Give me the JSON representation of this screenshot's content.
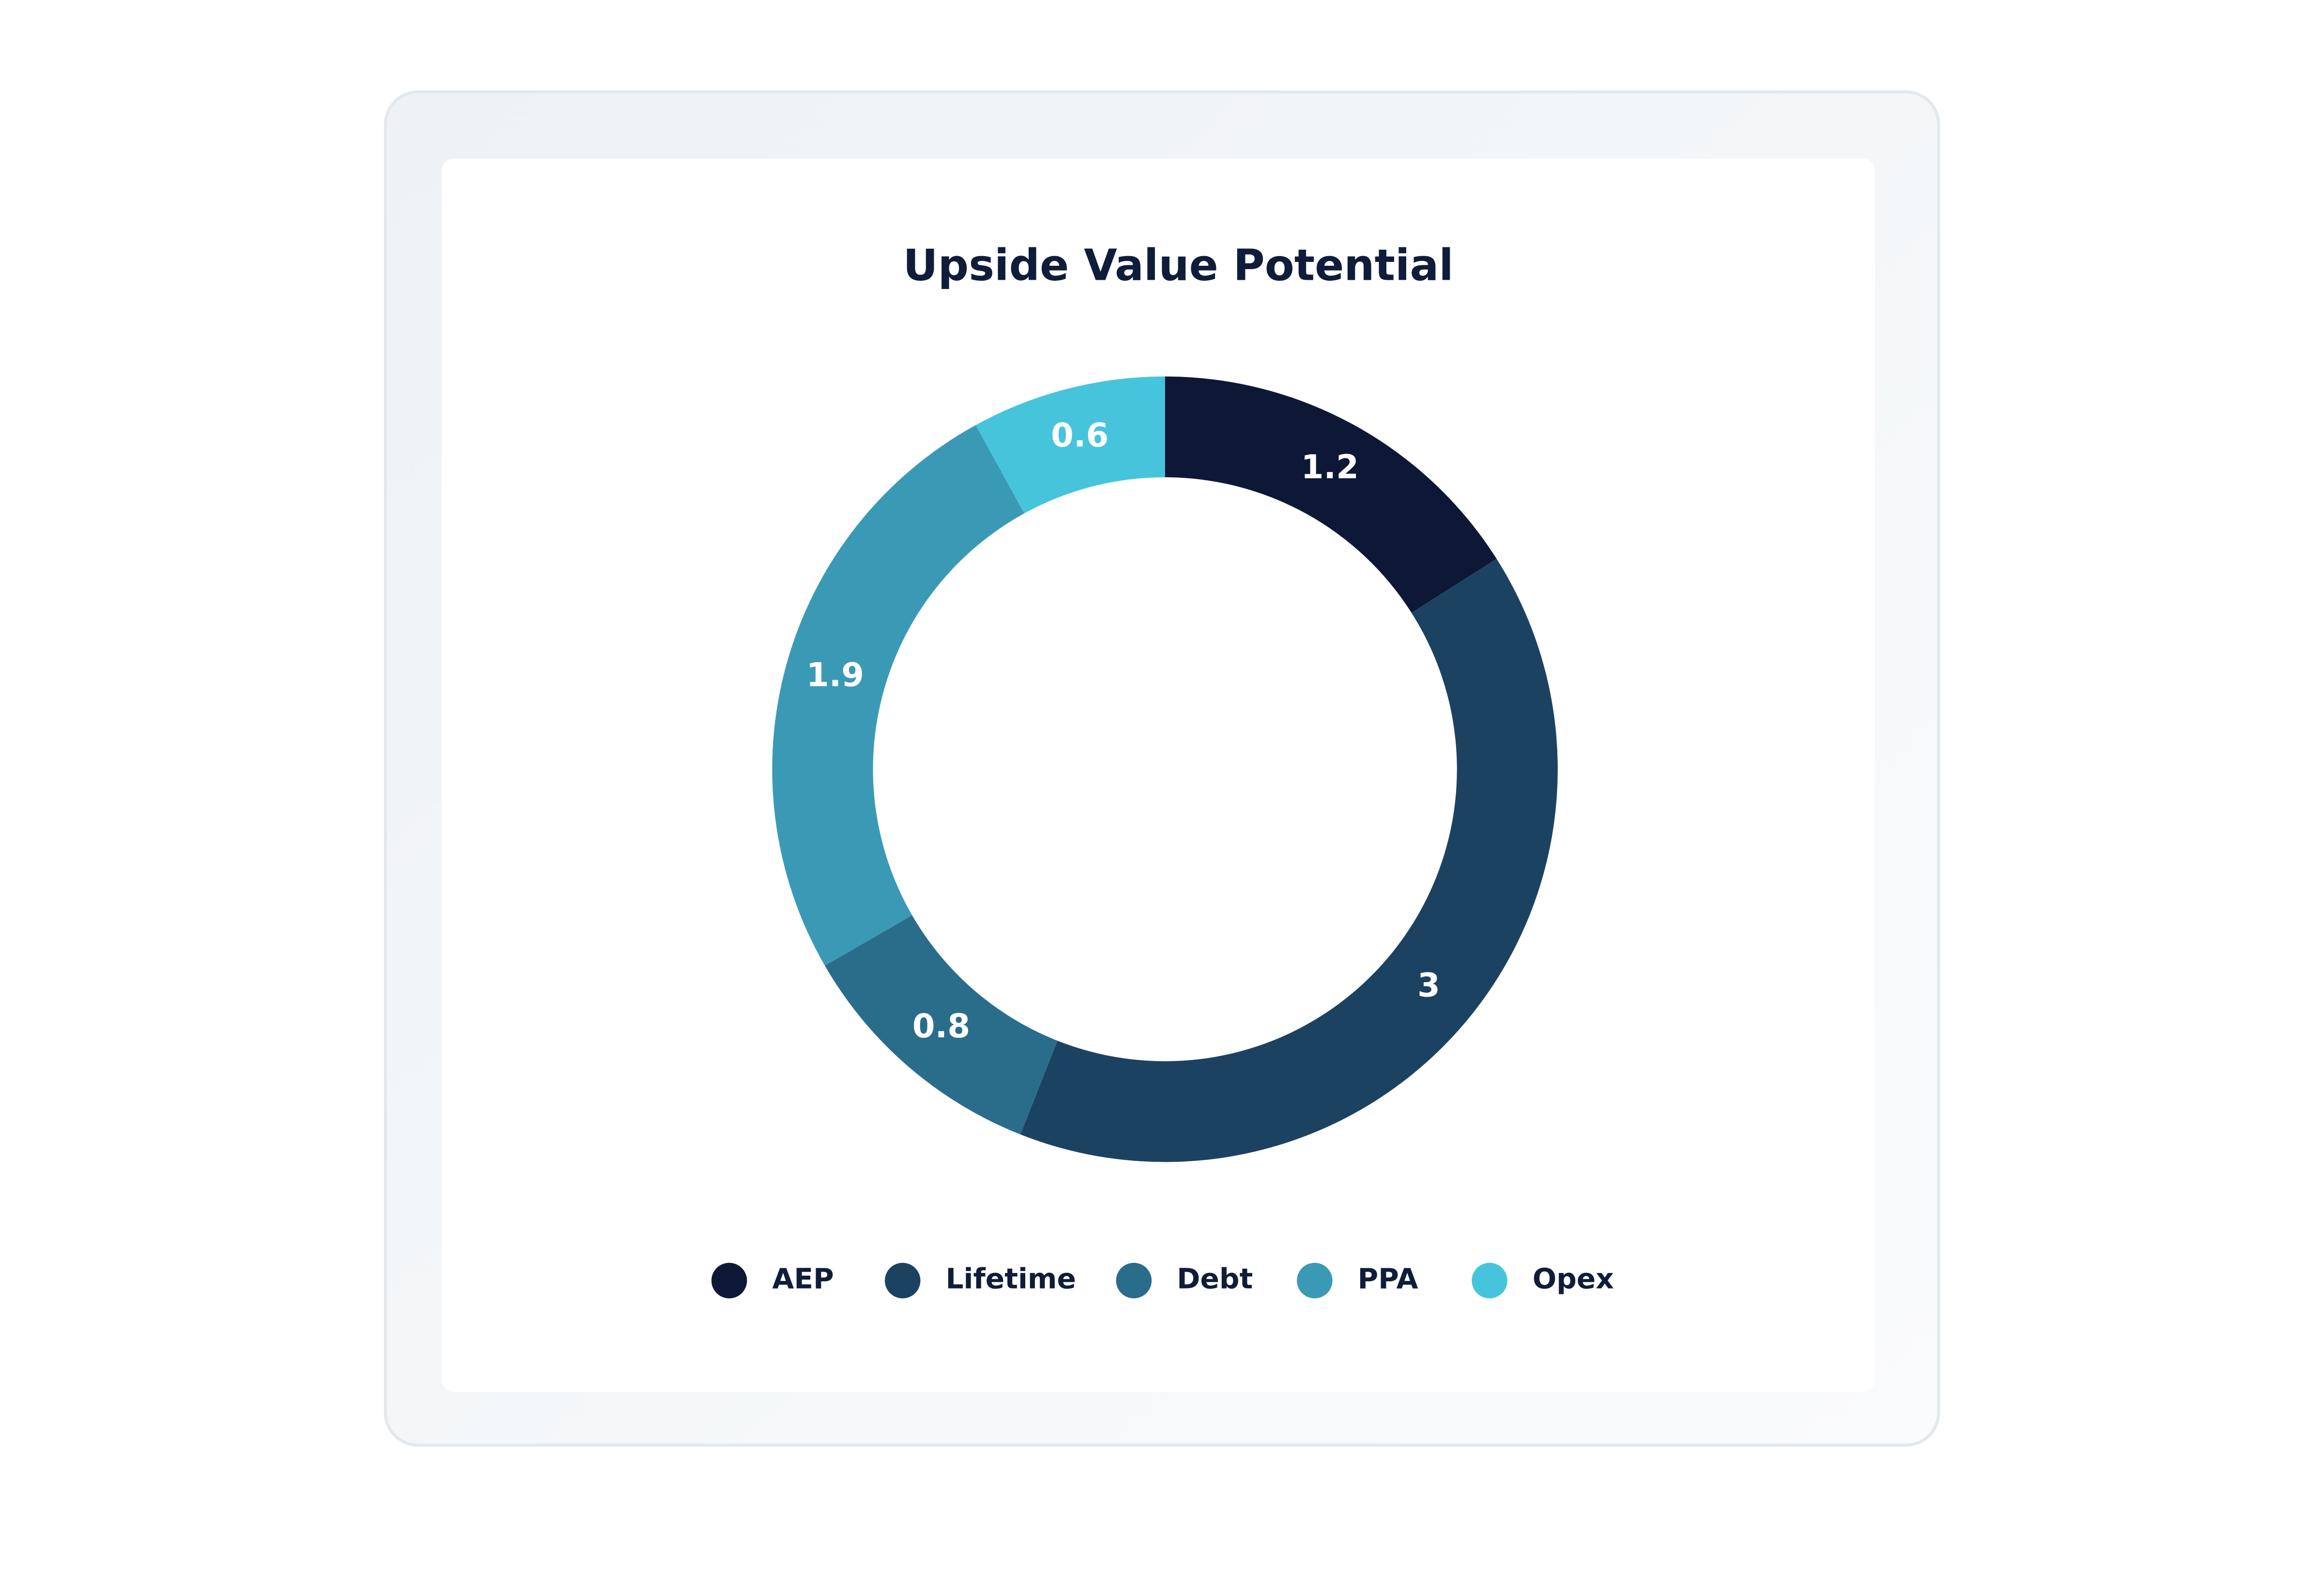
{
  "chart_data": {
    "type": "pie",
    "title": "Upside Value Potential",
    "categories": [
      "AEP",
      "Lifetime",
      "Debt",
      "PPA",
      "Opex"
    ],
    "values": [
      1.2,
      3,
      0.8,
      1.9,
      0.6
    ],
    "colors": [
      "#0c1836",
      "#1c4262",
      "#2a6d8b",
      "#3a9ab6",
      "#46c4dc"
    ],
    "legend": "bottom"
  }
}
